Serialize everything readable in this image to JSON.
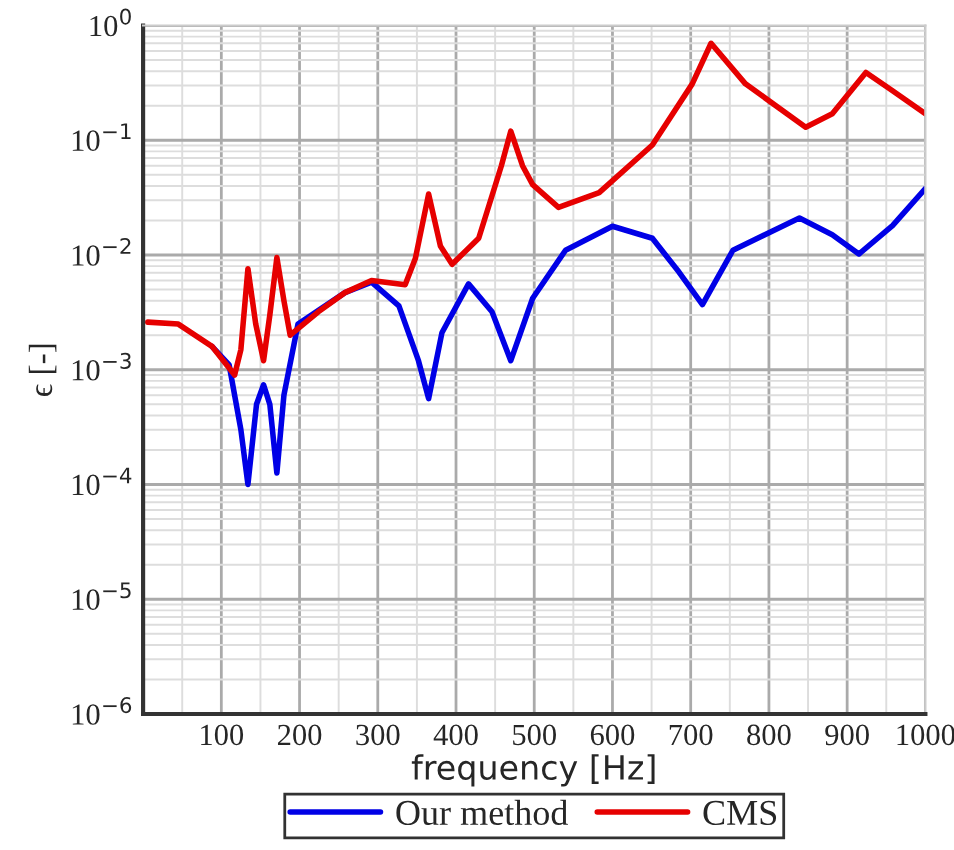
{
  "chart_data": {
    "type": "line",
    "xlabel": "frequency [Hz]",
    "ylabel": "ϵ [-]",
    "log": "y",
    "grid": true,
    "legend": "bottom",
    "line_style": "solid",
    "marker": "none",
    "xlim": [
      0,
      1000
    ],
    "xticks": [
      100,
      200,
      300,
      400,
      500,
      600,
      700,
      800,
      900,
      1000
    ],
    "ylim": [
      1e-06,
      1
    ],
    "yticks": [
      {
        "value": 1e-06,
        "label": "10$^{−6}$"
      },
      {
        "value": 1e-05,
        "label": "10$^{−5}$"
      },
      {
        "value": 0.0001,
        "label": "10$^{−4}$"
      },
      {
        "value": 0.001,
        "label": "10$^{−3}$"
      },
      {
        "value": 0.01,
        "label": "10$^{−2}$"
      },
      {
        "value": 0.1,
        "label": "10$^{−1}$"
      },
      {
        "value": 1,
        "label": "10$^{0}$"
      }
    ],
    "series": [
      {
        "name": "Our method",
        "color": "#0000e6",
        "x": [
          88,
          110,
          125,
          134,
          145,
          154,
          162,
          171,
          180,
          198,
          258,
          292,
          327,
          352,
          365,
          382,
          416,
          446,
          470,
          498,
          540,
          600,
          651,
          685,
          715,
          754,
          839,
          881,
          915,
          958,
          1000
        ],
        "values": [
          0.0016,
          0.0011,
          0.0003,
          0.0001,
          0.0005,
          0.00074,
          0.0005,
          0.000126,
          0.0006,
          0.0025,
          0.0047,
          0.0058,
          0.0036,
          0.0012,
          0.00056,
          0.0021,
          0.0056,
          0.0032,
          0.0012,
          0.0042,
          0.011,
          0.0178,
          0.014,
          0.0071,
          0.0037,
          0.011,
          0.021,
          0.015,
          0.0102,
          0.018,
          0.038
        ]
      },
      {
        "name": "CMS",
        "color": "#e60000",
        "x": [
          6,
          45,
          88,
          117,
          125,
          134,
          144,
          154,
          162,
          171,
          180,
          188,
          224,
          258,
          292,
          335,
          348,
          365,
          380,
          395,
          429,
          458,
          470,
          485,
          498,
          531,
          583,
          651,
          702,
          726,
          770,
          847,
          881,
          924,
          958,
          1000
        ],
        "values": [
          0.0026,
          0.0025,
          0.0016,
          0.0009,
          0.0015,
          0.0076,
          0.0025,
          0.0012,
          0.003,
          0.0095,
          0.004,
          0.002,
          0.0032,
          0.0047,
          0.006,
          0.0055,
          0.0093,
          0.034,
          0.012,
          0.0083,
          0.014,
          0.06,
          0.12,
          0.06,
          0.041,
          0.026,
          0.035,
          0.091,
          0.31,
          0.7,
          0.31,
          0.13,
          0.17,
          0.39,
          0.27,
          0.17
        ]
      }
    ]
  }
}
